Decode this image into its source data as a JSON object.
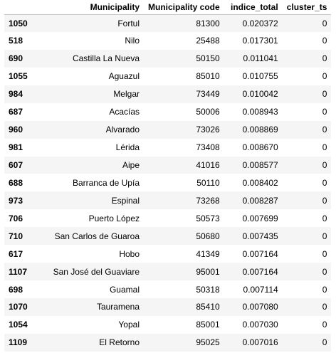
{
  "table": {
    "columns": {
      "index": "",
      "municipality": "Municipality",
      "municipality_code": "Municipality code",
      "indice_total": "indice_total",
      "cluster_ts": "cluster_ts"
    },
    "rows": [
      {
        "index": "1050",
        "municipality": "Fortul",
        "municipality_code": "81300",
        "indice_total": "0.020372",
        "cluster_ts": "0"
      },
      {
        "index": "518",
        "municipality": "Nilo",
        "municipality_code": "25488",
        "indice_total": "0.017301",
        "cluster_ts": "0"
      },
      {
        "index": "690",
        "municipality": "Castilla La Nueva",
        "municipality_code": "50150",
        "indice_total": "0.011041",
        "cluster_ts": "0"
      },
      {
        "index": "1055",
        "municipality": "Aguazul",
        "municipality_code": "85010",
        "indice_total": "0.010755",
        "cluster_ts": "0"
      },
      {
        "index": "984",
        "municipality": "Melgar",
        "municipality_code": "73449",
        "indice_total": "0.010042",
        "cluster_ts": "0"
      },
      {
        "index": "687",
        "municipality": "Acacías",
        "municipality_code": "50006",
        "indice_total": "0.008943",
        "cluster_ts": "0"
      },
      {
        "index": "960",
        "municipality": "Alvarado",
        "municipality_code": "73026",
        "indice_total": "0.008869",
        "cluster_ts": "0"
      },
      {
        "index": "981",
        "municipality": "Lérida",
        "municipality_code": "73408",
        "indice_total": "0.008670",
        "cluster_ts": "0"
      },
      {
        "index": "607",
        "municipality": "Aipe",
        "municipality_code": "41016",
        "indice_total": "0.008577",
        "cluster_ts": "0"
      },
      {
        "index": "688",
        "municipality": "Barranca de Upía",
        "municipality_code": "50110",
        "indice_total": "0.008402",
        "cluster_ts": "0"
      },
      {
        "index": "973",
        "municipality": "Espinal",
        "municipality_code": "73268",
        "indice_total": "0.008287",
        "cluster_ts": "0"
      },
      {
        "index": "706",
        "municipality": "Puerto López",
        "municipality_code": "50573",
        "indice_total": "0.007699",
        "cluster_ts": "0"
      },
      {
        "index": "710",
        "municipality": "San Carlos de Guaroa",
        "municipality_code": "50680",
        "indice_total": "0.007435",
        "cluster_ts": "0"
      },
      {
        "index": "617",
        "municipality": "Hobo",
        "municipality_code": "41349",
        "indice_total": "0.007164",
        "cluster_ts": "0"
      },
      {
        "index": "1107",
        "municipality": "San José del Guaviare",
        "municipality_code": "95001",
        "indice_total": "0.007164",
        "cluster_ts": "0"
      },
      {
        "index": "698",
        "municipality": "Guamal",
        "municipality_code": "50318",
        "indice_total": "0.007114",
        "cluster_ts": "0"
      },
      {
        "index": "1070",
        "municipality": "Tauramena",
        "municipality_code": "85410",
        "indice_total": "0.007080",
        "cluster_ts": "0"
      },
      {
        "index": "1054",
        "municipality": "Yopal",
        "municipality_code": "85001",
        "indice_total": "0.007030",
        "cluster_ts": "0"
      },
      {
        "index": "1109",
        "municipality": "El Retorno",
        "municipality_code": "95025",
        "indice_total": "0.007016",
        "cluster_ts": "0"
      }
    ]
  }
}
